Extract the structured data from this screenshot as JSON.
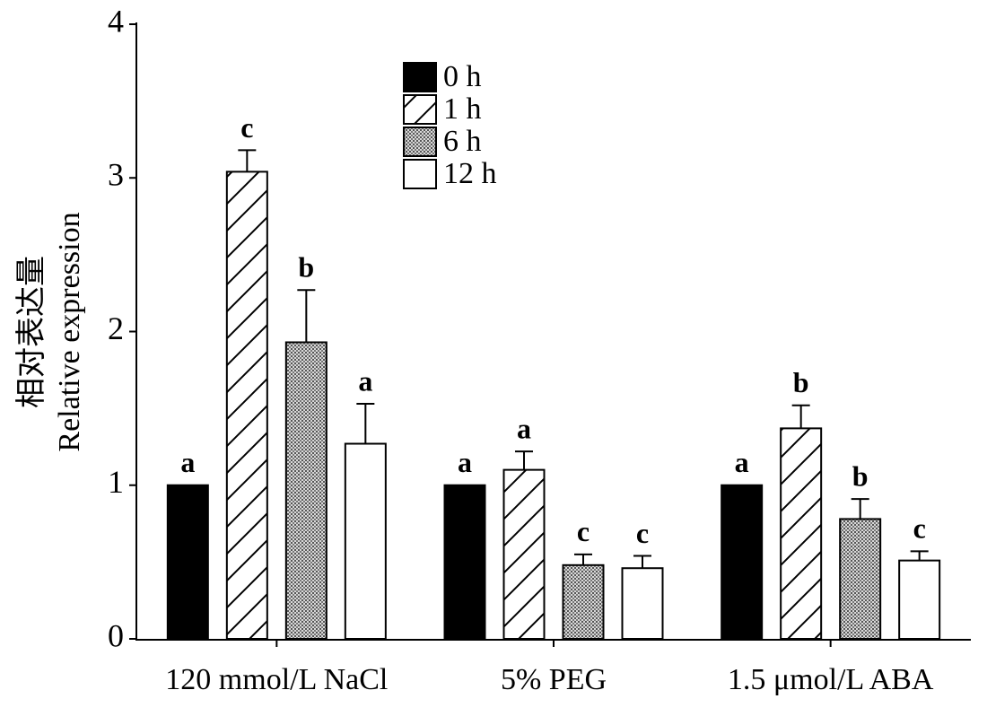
{
  "chart_data": {
    "type": "bar",
    "y_label": [
      "相对表达量",
      "Relative expression"
    ],
    "categories": [
      "120 mmol/L NaCl",
      "5% PEG",
      "1.5 μmol/L ABA"
    ],
    "series": [
      {
        "name": "0 h",
        "color": "#000000",
        "pattern": "solid",
        "values": [
          1.0,
          1.0,
          1.0
        ],
        "errors": [
          0,
          0,
          0
        ],
        "significance": [
          "a",
          "a",
          "a"
        ]
      },
      {
        "name": "1 h",
        "color": "#ffffff",
        "pattern": "hatch",
        "values": [
          3.04,
          1.1,
          1.37
        ],
        "errors": [
          0.14,
          0.12,
          0.15
        ],
        "significance": [
          "c",
          "a",
          "b"
        ]
      },
      {
        "name": "6 h",
        "color": "#b0b0b0",
        "pattern": "dots",
        "values": [
          1.93,
          0.48,
          0.78
        ],
        "errors": [
          0.34,
          0.07,
          0.13
        ],
        "significance": [
          "b",
          "c",
          "b"
        ]
      },
      {
        "name": "12 h",
        "color": "#ffffff",
        "pattern": "solid",
        "values": [
          1.27,
          0.46,
          0.51
        ],
        "errors": [
          0.26,
          0.08,
          0.06
        ],
        "significance": [
          "a",
          "c",
          "c"
        ]
      }
    ],
    "ylim": [
      0,
      4
    ],
    "yticks": [
      0,
      1,
      2,
      3,
      4
    ],
    "grid": false,
    "legend": "top"
  }
}
